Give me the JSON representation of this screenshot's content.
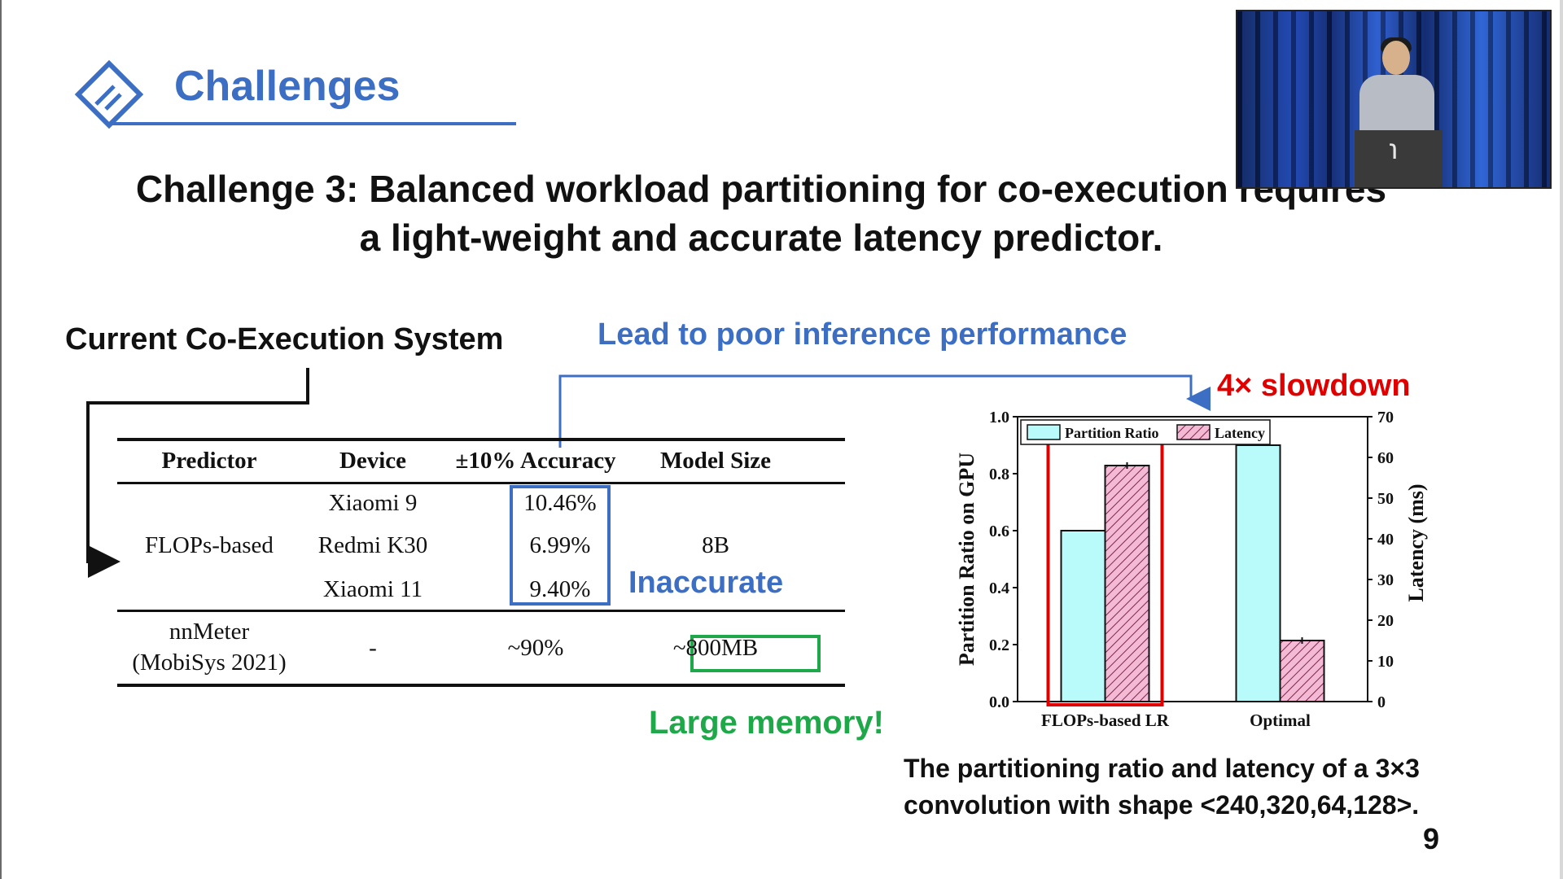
{
  "header": {
    "title": "Challenges",
    "icon": "diamond-icon"
  },
  "headline": {
    "line1": "Challenge 3: Balanced workload partitioning for co-execution requires",
    "line2": "a light-weight and accurate latency predictor."
  },
  "section_label": "Current Co-Execution System",
  "callouts": {
    "poor_performance": "Lead to poor inference performance",
    "slowdown": "4× slowdown",
    "inaccurate": "Inaccurate",
    "large_memory": "Large memory!"
  },
  "colors": {
    "accent_blue": "#3c6fc4",
    "highlight_red": "#e00000",
    "highlight_green": "#1fa84a",
    "bar_ratio": "#b9fbfb",
    "bar_latency": "#f4b9d4"
  },
  "table": {
    "headers": [
      "Predictor",
      "Device",
      "±10% Accuracy",
      "Model Size"
    ],
    "flops": {
      "predictor": "FLOPs-based",
      "devices": [
        "Xiaomi 9",
        "Redmi K30",
        "Xiaomi 11"
      ],
      "accuracies": [
        "10.46%",
        "6.99%",
        "9.40%"
      ],
      "model_size": "8B"
    },
    "nnmeter": {
      "predictor_line1": "nnMeter",
      "predictor_line2": "(MobiSys 2021)",
      "device": "-",
      "accuracy": "~90%",
      "model_size": "~800MB"
    }
  },
  "chart_data": {
    "type": "bar",
    "categories": [
      "FLOPs-based LR",
      "Optimal"
    ],
    "series": [
      {
        "name": "Partition Ratio",
        "axis": "left",
        "values": [
          0.6,
          0.9
        ]
      },
      {
        "name": "Latency",
        "axis": "right",
        "values": [
          58,
          15
        ]
      }
    ],
    "ylabel": "Partition Ratio  on GPU",
    "y2label": "Latency (ms)",
    "ylim": [
      0,
      1.0
    ],
    "y2lim": [
      0,
      70
    ],
    "yticks": [
      "0.0",
      "0.2",
      "0.4",
      "0.6",
      "0.8",
      "1.0"
    ],
    "y2ticks": [
      "0",
      "10",
      "20",
      "30",
      "40",
      "50",
      "60",
      "70"
    ],
    "legend_position": "top-left",
    "grid": false
  },
  "caption": {
    "line1": "The partitioning ratio and latency of a 3×3",
    "line2": "convolution with shape <240,320,64,128>."
  },
  "page_number": "9",
  "video": {
    "podium_logo": "℩"
  }
}
